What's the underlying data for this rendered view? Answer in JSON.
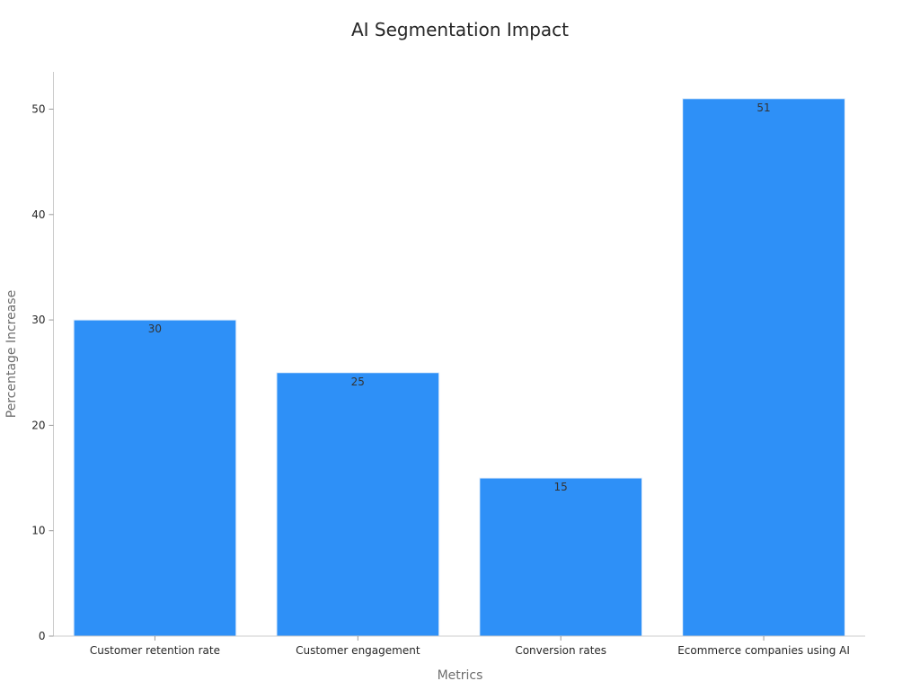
{
  "chart_data": {
    "type": "bar",
    "title": "AI Segmentation Impact",
    "xlabel": "Metrics",
    "ylabel": "Percentage Increase",
    "categories": [
      "Customer retention rate",
      "Customer engagement",
      "Conversion rates",
      "Ecommerce companies using AI"
    ],
    "values": [
      30,
      25,
      15,
      51
    ],
    "data_labels": [
      "30",
      "25",
      "15",
      "51"
    ],
    "yticks": [
      0,
      10,
      20,
      30,
      40,
      50
    ],
    "ytick_labels": [
      "0",
      "10",
      "20",
      "30",
      "40",
      "50"
    ],
    "ylim": [
      0,
      53.5
    ],
    "bar_color": "#2e90f7",
    "grid": false,
    "legend": "none"
  }
}
